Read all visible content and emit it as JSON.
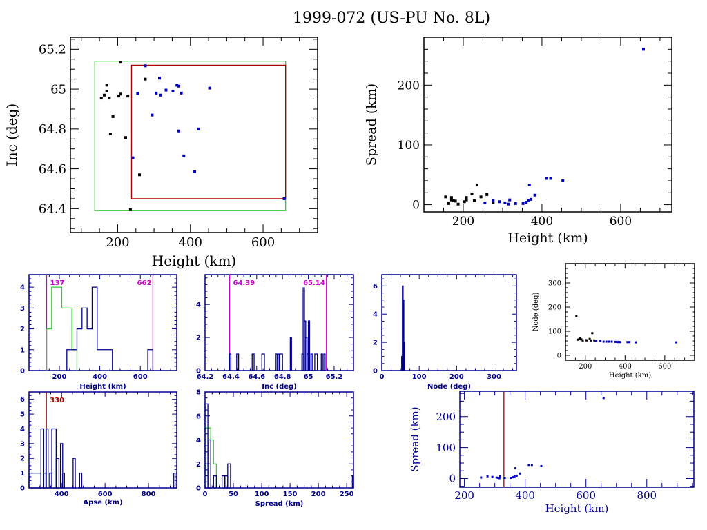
{
  "title": "1999-072 (US-PU No. 8L)",
  "colors": {
    "black": "#000000",
    "navy": "#00008b",
    "blue": "#0000c0",
    "green": "#33cc33",
    "red": "#b00000",
    "magenta": "#cc00cc"
  },
  "chart_data": [
    {
      "id": "inc-vs-height",
      "type": "scatter",
      "title": "",
      "xlabel": "Height (km)",
      "ylabel": "Inc (deg)",
      "xlim": [
        70,
        750
      ],
      "ylim": [
        64.28,
        65.26
      ],
      "xticks": [
        200,
        400,
        600
      ],
      "yticks": [
        64.4,
        64.6,
        64.8,
        65,
        65.2
      ],
      "ytick_labels": [
        "64.4",
        "64.6",
        "64.8",
        "65",
        "65.2"
      ],
      "boxes": [
        {
          "name": "green-box",
          "color": "green",
          "x": [
            137,
            662
          ],
          "y": [
            64.39,
            65.14
          ]
        },
        {
          "name": "red-box",
          "color": "red",
          "x": [
            238,
            662
          ],
          "y": [
            64.45,
            65.12
          ]
        }
      ],
      "series": [
        {
          "name": "black",
          "color": "black",
          "points": [
            [
              155,
              64.955
            ],
            [
              163,
              64.97
            ],
            [
              170,
              65.02
            ],
            [
              170,
              64.99
            ],
            [
              177,
              64.955
            ],
            [
              180,
              64.775
            ],
            [
              187,
              64.862
            ],
            [
              203,
              64.965
            ],
            [
              208,
              64.975
            ],
            [
              208,
              65.135
            ],
            [
              222,
              64.757
            ],
            [
              228,
              64.965
            ],
            [
              235,
              64.395
            ],
            [
              260,
              64.57
            ],
            [
              276,
              65.05
            ]
          ]
        },
        {
          "name": "blue",
          "color": "blue",
          "points": [
            [
              242,
              64.655
            ],
            [
              255,
              64.978
            ],
            [
              276,
              65.117
            ],
            [
              295,
              64.87
            ],
            [
              315,
              65.055
            ],
            [
              318,
              64.97
            ],
            [
              306,
              64.98
            ],
            [
              333,
              64.995
            ],
            [
              352,
              64.99
            ],
            [
              363,
              65.02
            ],
            [
              368,
              65.015
            ],
            [
              375,
              64.98
            ],
            [
              368,
              64.79
            ],
            [
              382,
              64.665
            ],
            [
              412,
              64.585
            ],
            [
              422,
              64.8
            ],
            [
              453,
              65.005
            ],
            [
              658,
              64.45
            ]
          ]
        }
      ]
    },
    {
      "id": "spread-vs-height",
      "type": "scatter",
      "xlabel": "Height (km)",
      "ylabel": "Spread (km)",
      "xlim": [
        100,
        730
      ],
      "ylim": [
        -12,
        280
      ],
      "xticks": [
        200,
        400,
        600
      ],
      "yticks": [
        0,
        100,
        200
      ],
      "series": [
        {
          "name": "black",
          "color": "black",
          "points": [
            [
              155,
              13
            ],
            [
              163,
              2
            ],
            [
              170,
              8
            ],
            [
              170,
              12
            ],
            [
              175,
              7
            ],
            [
              180,
              6
            ],
            [
              187,
              1
            ],
            [
              203,
              5
            ],
            [
              208,
              8
            ],
            [
              208,
              12
            ],
            [
              222,
              18
            ],
            [
              228,
              7
            ],
            [
              235,
              33
            ],
            [
              245,
              13
            ],
            [
              260,
              17
            ],
            [
              276,
              3
            ]
          ]
        },
        {
          "name": "blue",
          "color": "blue",
          "points": [
            [
              255,
              3
            ],
            [
              276,
              7
            ],
            [
              292,
              5
            ],
            [
              306,
              3
            ],
            [
              315,
              1
            ],
            [
              318,
              8
            ],
            [
              333,
              2
            ],
            [
              352,
              2
            ],
            [
              360,
              4
            ],
            [
              365,
              7
            ],
            [
              368,
              33
            ],
            [
              372,
              9
            ],
            [
              382,
              16
            ],
            [
              412,
              44
            ],
            [
              422,
              44
            ],
            [
              453,
              40
            ],
            [
              658,
              260
            ]
          ]
        }
      ]
    },
    {
      "id": "height-histogram",
      "type": "histogram",
      "xlabel": "Height (km)",
      "xlim": [
        50,
        780
      ],
      "ylim": [
        0,
        4.6
      ],
      "xticks": [
        200,
        400,
        600
      ],
      "yticks": [
        0,
        1,
        2,
        3,
        4
      ],
      "vlines": [
        {
          "x": 137,
          "label": "137",
          "color": "magenta"
        },
        {
          "x": 662,
          "label": "662",
          "color": "magenta"
        }
      ],
      "series": [
        {
          "name": "green",
          "color": "green",
          "edges": [
            137,
            162,
            212,
            262,
            287
          ],
          "counts": [
            2,
            4,
            3,
            1
          ]
        },
        {
          "name": "navy",
          "color": "navy",
          "edges": [
            237,
            287,
            312,
            337,
            362,
            387,
            412,
            437,
            462,
            637,
            662
          ],
          "counts": [
            1,
            2,
            3,
            2,
            4,
            1,
            1,
            1,
            0,
            1
          ]
        }
      ]
    },
    {
      "id": "inc-histogram",
      "type": "histogram",
      "xlabel": "Inc (deg)",
      "xlim": [
        64.2,
        65.35
      ],
      "ylim": [
        0,
        5.8
      ],
      "xticks": [
        64.2,
        64.4,
        64.6,
        64.8,
        65,
        65.2
      ],
      "xtick_labels": [
        "64.2",
        "64.4",
        "64.6",
        "64.8",
        "65",
        "65.2"
      ],
      "yticks": [
        0,
        2,
        4
      ],
      "vlines": [
        {
          "x": 64.39,
          "label": "64.39",
          "color": "magenta"
        },
        {
          "x": 65.14,
          "label": "65.14",
          "color": "magenta"
        }
      ],
      "series": [
        {
          "name": "navy",
          "color": "navy",
          "bins": [
            [
              64.39,
              64.4,
              1
            ],
            [
              64.445,
              64.46,
              1
            ],
            [
              64.565,
              64.58,
              1
            ],
            [
              64.64,
              64.66,
              1
            ],
            [
              64.75,
              64.76,
              1
            ],
            [
              64.765,
              64.775,
              1
            ],
            [
              64.78,
              64.8,
              1
            ],
            [
              64.86,
              64.87,
              2
            ],
            [
              64.95,
              64.96,
              1
            ],
            [
              64.96,
              64.97,
              5
            ],
            [
              64.97,
              64.98,
              3
            ],
            [
              64.98,
              64.99,
              2
            ],
            [
              64.99,
              65.0,
              1
            ],
            [
              65.0,
              65.01,
              3
            ],
            [
              65.02,
              65.03,
              1
            ],
            [
              65.05,
              65.07,
              1
            ],
            [
              65.1,
              65.11,
              1
            ],
            [
              65.12,
              65.13,
              1
            ]
          ]
        }
      ]
    },
    {
      "id": "node-histogram",
      "type": "histogram",
      "xlabel": "Node (deg)",
      "xlim": [
        0,
        360
      ],
      "ylim": [
        0,
        6.8
      ],
      "xticks": [
        0,
        100,
        200,
        300
      ],
      "yticks": [
        0,
        2,
        4,
        6
      ],
      "series": [
        {
          "name": "navy",
          "color": "navy",
          "bins": [
            [
              53,
              55,
              1
            ],
            [
              55,
              57,
              6
            ],
            [
              57,
              59,
              5
            ],
            [
              59,
              61,
              2
            ]
          ]
        }
      ]
    },
    {
      "id": "node-vs-height",
      "type": "scatter",
      "xlabel": "Height (km)",
      "ylabel": "Node (deg)",
      "xlim": [
        100,
        750
      ],
      "ylim": [
        -20,
        380
      ],
      "xticks": [
        200,
        400,
        600
      ],
      "yticks": [
        0,
        100,
        200,
        300
      ],
      "series": [
        {
          "name": "black",
          "color": "black",
          "points": [
            [
              155,
              162
            ],
            [
              163,
              65
            ],
            [
              170,
              68
            ],
            [
              175,
              70
            ],
            [
              180,
              66
            ],
            [
              187,
              62
            ],
            [
              203,
              63
            ],
            [
              208,
              62
            ],
            [
              222,
              68
            ],
            [
              228,
              62
            ],
            [
              235,
              92
            ],
            [
              245,
              62
            ]
          ]
        },
        {
          "name": "blue",
          "color": "blue",
          "points": [
            [
              255,
              60
            ],
            [
              276,
              60
            ],
            [
              292,
              57
            ],
            [
              306,
              57
            ],
            [
              318,
              57
            ],
            [
              333,
              57
            ],
            [
              352,
              56
            ],
            [
              363,
              55
            ],
            [
              368,
              56
            ],
            [
              375,
              55
            ],
            [
              412,
              55
            ],
            [
              422,
              55
            ],
            [
              453,
              54
            ],
            [
              658,
              54
            ]
          ]
        }
      ]
    },
    {
      "id": "apse-histogram",
      "type": "histogram",
      "xlabel": "Apse (km)",
      "xlim": [
        250,
        930
      ],
      "ylim": [
        0,
        6.5
      ],
      "xticks": [
        400,
        600,
        800
      ],
      "yticks": [
        0,
        1,
        2,
        3,
        4,
        5,
        6
      ],
      "vlines": [
        {
          "x": 330,
          "label": "330",
          "color": "red"
        }
      ],
      "series": [
        {
          "name": "navy",
          "color": "navy",
          "bins": [
            [
              250,
              305,
              1
            ],
            [
              305,
              318,
              4
            ],
            [
              318,
              328,
              1
            ],
            [
              328,
              338,
              4
            ],
            [
              338,
              345,
              0
            ],
            [
              345,
              355,
              1
            ],
            [
              355,
              375,
              4
            ],
            [
              375,
              388,
              2
            ],
            [
              388,
              395,
              0
            ],
            [
              395,
              405,
              3
            ],
            [
              405,
              413,
              1
            ],
            [
              453,
              463,
              2
            ],
            [
              483,
              493,
              1
            ],
            [
              915,
              922,
              1
            ],
            [
              922,
              930,
              1
            ]
          ]
        }
      ]
    },
    {
      "id": "spread-histogram",
      "type": "histogram",
      "xlabel": "Spread (km)",
      "xlim": [
        0,
        262
      ],
      "ylim": [
        0,
        8
      ],
      "xticks": [
        0,
        50,
        100,
        150,
        200,
        250
      ],
      "xtick_labels": [
        "0",
        "50",
        "100",
        "150",
        "200",
        "250"
      ],
      "yticks": [
        0,
        2,
        4,
        6,
        8
      ],
      "series": [
        {
          "name": "green",
          "color": "green",
          "edges": [
            0,
            5,
            10,
            15,
            20
          ],
          "counts": [
            5,
            5,
            4,
            2
          ],
          "tail": [
            [
              35,
              37,
              1
            ]
          ]
        },
        {
          "name": "navy",
          "color": "navy",
          "bins": [
            [
              0,
              5,
              7
            ],
            [
              5,
              10,
              4
            ],
            [
              15,
              20,
              1
            ],
            [
              30,
              35,
              1
            ],
            [
              35,
              40,
              1
            ],
            [
              40,
              45,
              2
            ],
            [
              260,
              262,
              1
            ]
          ]
        }
      ]
    },
    {
      "id": "spread-vs-height-blue",
      "type": "scatter",
      "xlabel": "Height (km)",
      "ylabel": "Spread (km)",
      "xlim": [
        185,
        955
      ],
      "ylim": [
        -28,
        282
      ],
      "xticks": [
        200,
        400,
        600,
        800
      ],
      "yticks": [
        0,
        100,
        200
      ],
      "vlines": [
        {
          "x": 330,
          "color": "red"
        }
      ],
      "series": [
        {
          "name": "blue",
          "color": "blue",
          "points": [
            [
              255,
              3
            ],
            [
              276,
              7
            ],
            [
              292,
              5
            ],
            [
              306,
              3
            ],
            [
              312,
              2
            ],
            [
              315,
              1
            ],
            [
              318,
              7
            ],
            [
              333,
              2
            ],
            [
              352,
              2
            ],
            [
              360,
              4
            ],
            [
              365,
              7
            ],
            [
              368,
              33
            ],
            [
              372,
              9
            ],
            [
              382,
              16
            ],
            [
              412,
              44
            ],
            [
              422,
              44
            ],
            [
              453,
              40
            ],
            [
              658,
              260
            ]
          ]
        }
      ]
    }
  ]
}
